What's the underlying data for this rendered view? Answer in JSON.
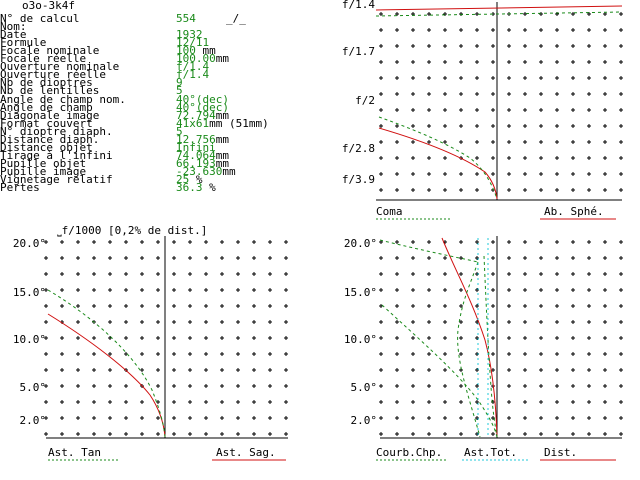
{
  "title": "o3o-3k4f",
  "specs": [
    {
      "label": "N° de calcul",
      "value": "554",
      "unit": ""
    },
    {
      "label": "Nom:",
      "value": "",
      "unit": ""
    },
    {
      "label": "Date",
      "value": "1932",
      "unit": ""
    },
    {
      "label": "Formule",
      "value": "12/11",
      "unit": ""
    },
    {
      "label": "Focale nominale",
      "value": "100",
      "unit": " mm"
    },
    {
      "label": "Focale réelle",
      "value": "100.00",
      "unit": "mm"
    },
    {
      "label": "Ouverture nominale",
      "value": "f/1.4",
      "unit": ""
    },
    {
      "label": "Ouverture réelle",
      "value": "f/1.4",
      "unit": ""
    },
    {
      "label": "Nb de dioptres",
      "value": "9",
      "unit": ""
    },
    {
      "label": "Nb de lentilles",
      "value": "5",
      "unit": ""
    },
    {
      "label": "Angle de champ nom.",
      "value": "40°(dec)",
      "unit": ""
    },
    {
      "label": "Angle de champ",
      "value": "40°(dec)",
      "unit": ""
    },
    {
      "label": "Diagonale image",
      "value": "72.794",
      "unit": "mm"
    },
    {
      "label": "Format couvert",
      "value": "41x61",
      "unit": "mm (51mm)"
    },
    {
      "label": "N° dioptre diaph.",
      "value": "5",
      "unit": ""
    },
    {
      "label": "Distance diaph.",
      "value": "12.756",
      "unit": "mm"
    },
    {
      "label": "Distance objet",
      "value": "Infini",
      "unit": ""
    },
    {
      "label": "Tirage à l'infini",
      "value": "74.064",
      "unit": "mm"
    },
    {
      "label": "Pupille objet",
      "value": "66.193",
      "unit": "mm"
    },
    {
      "label": "Pupille image",
      "value": "-23.630",
      "unit": "mm"
    },
    {
      "label": "Vignetage relatif",
      "value": "25",
      "unit": " %"
    },
    {
      "label": "Pertes",
      "value": "36.3",
      "unit": " %"
    }
  ],
  "scale_note": "f/1000 [0,2% de dist.]",
  "plots": {
    "aperture": {
      "tick_labels": [
        "f/1.4",
        "f/1.7",
        "f/2",
        "f/2.8",
        "f/3.9"
      ],
      "legend_left": "Coma",
      "legend_right": "Ab. Sphé."
    },
    "astig": {
      "tick_labels": [
        "20.0°",
        "15.0°",
        "10.0°",
        "5.0°",
        "2.0°"
      ],
      "legend_left": "Ast. Tan",
      "legend_right": "Ast. Sag."
    },
    "field": {
      "tick_labels": [
        "20.0°",
        "15.0°",
        "10.0°",
        "5.0°",
        "2.0°"
      ],
      "legend_left": "Courb.Chp.",
      "legend_mid": "Ast.Tot.",
      "legend_right": "Dist."
    }
  },
  "colors": {
    "red": "#d01010",
    "green": "#1a8a1a",
    "cyan": "#20c8d8"
  }
}
